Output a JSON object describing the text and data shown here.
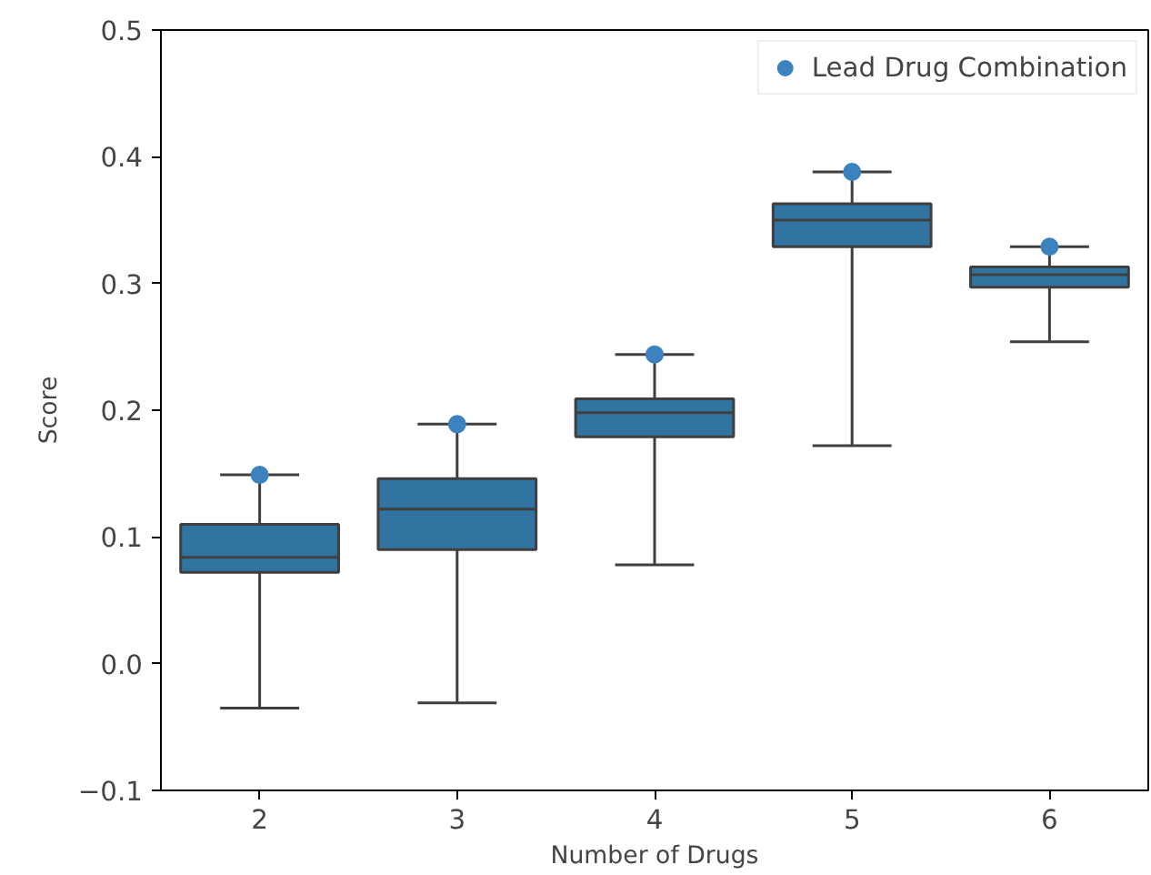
{
  "chart_data": {
    "type": "box",
    "xlabel": "Number of Drugs",
    "ylabel": "Score",
    "categories": [
      "2",
      "3",
      "4",
      "5",
      "6"
    ],
    "color": "#3274a1",
    "boxes": [
      {
        "low": -0.035,
        "q1": 0.072,
        "median": 0.084,
        "q3": 0.11,
        "high": 0.149
      },
      {
        "low": -0.031,
        "q1": 0.09,
        "median": 0.122,
        "q3": 0.146,
        "high": 0.189
      },
      {
        "low": 0.078,
        "q1": 0.179,
        "median": 0.198,
        "q3": 0.209,
        "high": 0.244
      },
      {
        "low": 0.172,
        "q1": 0.329,
        "median": 0.35,
        "q3": 0.363,
        "high": 0.388
      },
      {
        "low": 0.254,
        "q1": 0.297,
        "median": 0.307,
        "q3": 0.313,
        "high": 0.329
      }
    ],
    "series": [
      {
        "type": "scatter",
        "name": "Lead Drug Combination",
        "color": "#3b82bf",
        "x": [
          "2",
          "3",
          "4",
          "5",
          "6"
        ],
        "values": [
          0.149,
          0.189,
          0.244,
          0.388,
          0.329
        ]
      }
    ],
    "ylim": [
      -0.1,
      0.5
    ],
    "yticks": [
      {
        "value": -0.1,
        "label": "−0.1"
      },
      {
        "value": 0.0,
        "label": "0.0"
      },
      {
        "value": 0.1,
        "label": "0.1"
      },
      {
        "value": 0.2,
        "label": "0.2"
      },
      {
        "value": 0.3,
        "label": "0.3"
      },
      {
        "value": 0.4,
        "label": "0.4"
      },
      {
        "value": 0.5,
        "label": "0.5"
      }
    ],
    "grid": false,
    "legend": "top right",
    "marker": "circle"
  }
}
